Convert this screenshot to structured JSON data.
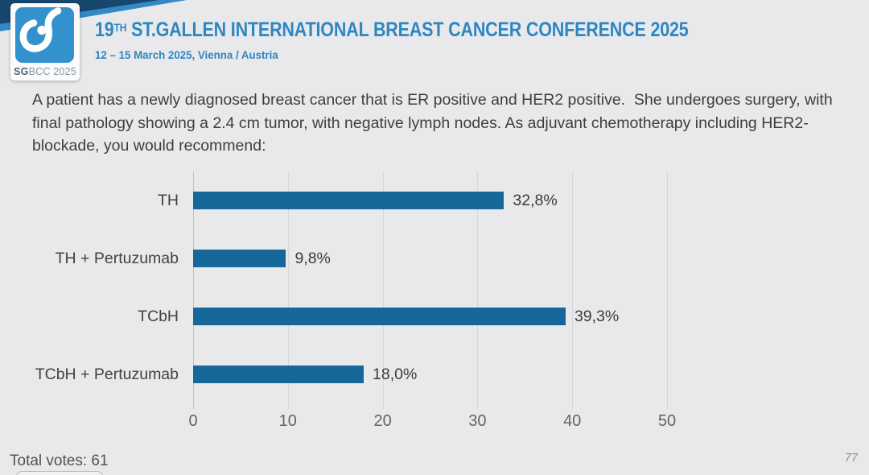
{
  "header": {
    "title_number": "19",
    "title_superscript": "TH",
    "title_rest": " ST.GALLEN INTERNATIONAL BREAST CANCER CONFERENCE 2025",
    "subtitle": "12 – 15 March 2025, Vienna / Austria",
    "logo": {
      "icon": "breast-cancer-ribbon-icon",
      "badge_bold": "SG",
      "badge_rest": "BCC 2025"
    }
  },
  "question": {
    "text": "A patient has a newly diagnosed breast cancer that is ER positive and HER2 positive.  She undergoes surgery, with final pathology showing a 2.4 cm tumor, with negative lymph nodes. As adjuvant chemotherapy including HER2-blockade, you would recommend:"
  },
  "chart_data": {
    "type": "bar",
    "orientation": "horizontal",
    "categories": [
      "TH",
      "TH + Pertuzumab",
      "TCbH",
      "TCbH + Pertuzumab"
    ],
    "values": [
      32.8,
      9.8,
      39.3,
      18.0
    ],
    "value_labels": [
      "32,8%",
      "9,8%",
      "39,3%",
      "18,0%"
    ],
    "x_ticks": [
      0,
      10,
      20,
      30,
      40,
      50
    ],
    "x_tick_labels": [
      "0",
      "10",
      "20",
      "30",
      "40",
      "50"
    ],
    "xlim": [
      0,
      50
    ],
    "grid": true,
    "legend": false,
    "bar_color": "#16689b",
    "total_votes": 61
  },
  "footer": {
    "total_votes_label": "Total votes: 61",
    "page_number": "77"
  },
  "colors": {
    "background": "#e9e9eb",
    "title_blue": "#2d87c3",
    "corner_navy": "#17476e",
    "corner_blue": "#2f8ac6",
    "logo_blue": "#3391cd",
    "bar_blue": "#16689b"
  }
}
